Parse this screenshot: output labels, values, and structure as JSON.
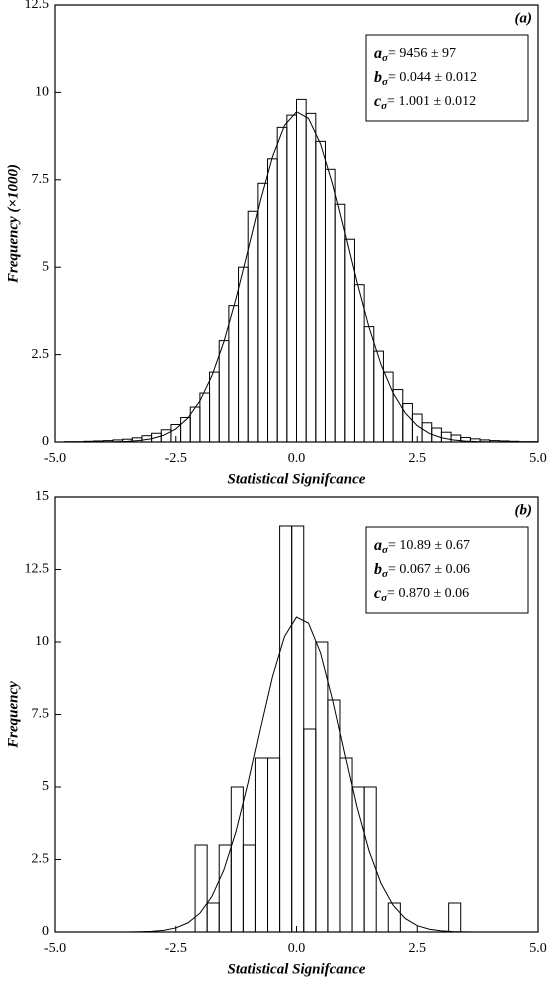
{
  "chart_data": [
    {
      "type": "histogram",
      "panel_label": "(a)",
      "xlabel": "Statistical Signifcance",
      "ylabel": "Frequency (×1000)",
      "xlim": [
        -5,
        5
      ],
      "ylim": [
        0,
        12.5
      ],
      "xticks": [
        {
          "value": -5,
          "label": "-5.0"
        },
        {
          "value": -2.5,
          "label": "-2.5"
        },
        {
          "value": 0,
          "label": "0.0"
        },
        {
          "value": 2.5,
          "label": "2.5"
        },
        {
          "value": 5,
          "label": "5.0"
        }
      ],
      "yticks": [
        0,
        2.5,
        5,
        7.5,
        10,
        12.5
      ],
      "bins": [
        -5,
        -4.8,
        -4.6,
        -4.4,
        -4.2,
        -4,
        -3.8,
        -3.6,
        -3.4,
        -3.2,
        -3,
        -2.8,
        -2.6,
        -2.4,
        -2.2,
        -2,
        -1.8,
        -1.6,
        -1.4,
        -1.2,
        -1,
        -0.8,
        -0.6,
        -0.4,
        -0.2,
        0,
        0.2,
        0.4,
        0.6,
        0.8,
        1,
        1.2,
        1.4,
        1.6,
        1.8,
        2,
        2.2,
        2.4,
        2.6,
        2.8,
        3,
        3.2,
        3.4,
        3.6,
        3.8,
        4,
        4.2,
        4.4,
        4.6,
        4.8,
        5
      ],
      "values": [
        0,
        0.01,
        0.01,
        0.02,
        0.03,
        0.04,
        0.06,
        0.08,
        0.12,
        0.18,
        0.25,
        0.35,
        0.5,
        0.7,
        1.0,
        1.4,
        2.0,
        2.9,
        3.9,
        5.0,
        6.6,
        7.4,
        8.1,
        9.0,
        9.35,
        9.8,
        9.4,
        8.6,
        7.8,
        6.8,
        5.8,
        4.5,
        3.3,
        2.6,
        2.0,
        1.5,
        1.1,
        0.8,
        0.55,
        0.4,
        0.28,
        0.2,
        0.13,
        0.09,
        0.06,
        0.04,
        0.03,
        0.02,
        0.01,
        0.01
      ],
      "fit_x": [
        -5,
        -4.75,
        -4.5,
        -4.25,
        -4,
        -3.75,
        -3.5,
        -3.25,
        -3,
        -2.75,
        -2.5,
        -2.25,
        -2,
        -1.75,
        -1.5,
        -1.25,
        -1,
        -0.75,
        -0.5,
        -0.25,
        0,
        0.25,
        0.5,
        0.75,
        1,
        1.25,
        1.5,
        1.75,
        2,
        2.25,
        2.5,
        2.75,
        3,
        3.25,
        3.5,
        3.75,
        4,
        4.25,
        4.5,
        4.75,
        5
      ],
      "fit_values": [
        0,
        0,
        0,
        0.001,
        0.003,
        0.007,
        0.018,
        0.042,
        0.093,
        0.192,
        0.374,
        0.685,
        1.175,
        1.898,
        2.877,
        4.101,
        5.489,
        6.904,
        8.158,
        9.057,
        9.447,
        9.257,
        8.524,
        7.374,
        5.992,
        4.576,
        3.283,
        2.214,
        1.401,
        0.834,
        0.466,
        0.245,
        0.121,
        0.056,
        0.024,
        0.01,
        0.004,
        0.001,
        0,
        0,
        0
      ],
      "params": [
        {
          "symbol": "a",
          "sub": "σ",
          "value": "= 9456 ± 97"
        },
        {
          "symbol": "b",
          "sub": "σ",
          "value": "= 0.044 ± 0.012"
        },
        {
          "symbol": "c",
          "sub": "σ",
          "value": "= 1.001 ± 0.012"
        }
      ]
    },
    {
      "type": "histogram",
      "panel_label": "(b)",
      "xlabel": "Statistical Signifcance",
      "ylabel": "Frequency",
      "xlim": [
        -5,
        5
      ],
      "ylim": [
        0,
        15
      ],
      "xticks": [
        {
          "value": -5,
          "label": "-5.0"
        },
        {
          "value": -2.5,
          "label": "-2.5"
        },
        {
          "value": 0,
          "label": "0.0"
        },
        {
          "value": 2.5,
          "label": "2.5"
        },
        {
          "value": 5,
          "label": "5.0"
        }
      ],
      "yticks": [
        0,
        2.5,
        5,
        7.5,
        10,
        12.5,
        15
      ],
      "bins": [
        -4.85,
        -4.6,
        -4.35,
        -4.1,
        -3.85,
        -3.6,
        -3.35,
        -3.1,
        -2.85,
        -2.6,
        -2.35,
        -2.1,
        -1.85,
        -1.6,
        -1.35,
        -1.1,
        -0.85,
        -0.6,
        -0.35,
        -0.1,
        0.15,
        0.4,
        0.65,
        0.9,
        1.15,
        1.4,
        1.65,
        1.9,
        2.15,
        2.4,
        2.65,
        2.9,
        3.15,
        3.4,
        3.65,
        3.9,
        4.15,
        4.4,
        4.65,
        4.9
      ],
      "values": [
        0,
        0,
        0,
        0,
        0,
        0,
        0,
        0,
        0,
        0,
        0,
        3,
        1,
        3,
        5,
        3,
        6,
        6,
        14,
        14,
        7,
        10,
        8,
        6,
        5,
        5,
        0,
        1,
        0,
        0,
        0,
        0,
        1,
        0,
        0,
        0,
        0,
        0,
        0
      ],
      "fit_x": [
        -5,
        -4.75,
        -4.5,
        -4.25,
        -4,
        -3.75,
        -3.5,
        -3.25,
        -3,
        -2.75,
        -2.5,
        -2.25,
        -2,
        -1.75,
        -1.5,
        -1.25,
        -1,
        -0.75,
        -0.5,
        -0.25,
        0,
        0.25,
        0.5,
        0.75,
        1,
        1.25,
        1.5,
        1.75,
        2,
        2.25,
        2.5,
        2.75,
        3,
        3.25,
        3.5,
        3.75,
        4,
        4.25,
        4.5,
        4.75,
        5
      ],
      "fit_values": [
        0,
        0,
        0,
        0,
        0,
        0,
        0.002,
        0.008,
        0.022,
        0.058,
        0.14,
        0.314,
        0.648,
        1.229,
        2.151,
        3.463,
        5.134,
        7.007,
        8.807,
        10.19,
        10.86,
        10.65,
        9.621,
        8.002,
        6.128,
        4.32,
        2.804,
        1.677,
        0.923,
        0.468,
        0.218,
        0.094,
        0.037,
        0.014,
        0.004,
        0.001,
        0,
        0,
        0,
        0,
        0
      ],
      "params": [
        {
          "symbol": "a",
          "sub": "σ",
          "value": "= 10.89 ± 0.67"
        },
        {
          "symbol": "b",
          "sub": "σ",
          "value": "= 0.067 ± 0.06"
        },
        {
          "symbol": "c",
          "sub": "σ",
          "value": "= 0.870 ± 0.06"
        }
      ]
    }
  ]
}
